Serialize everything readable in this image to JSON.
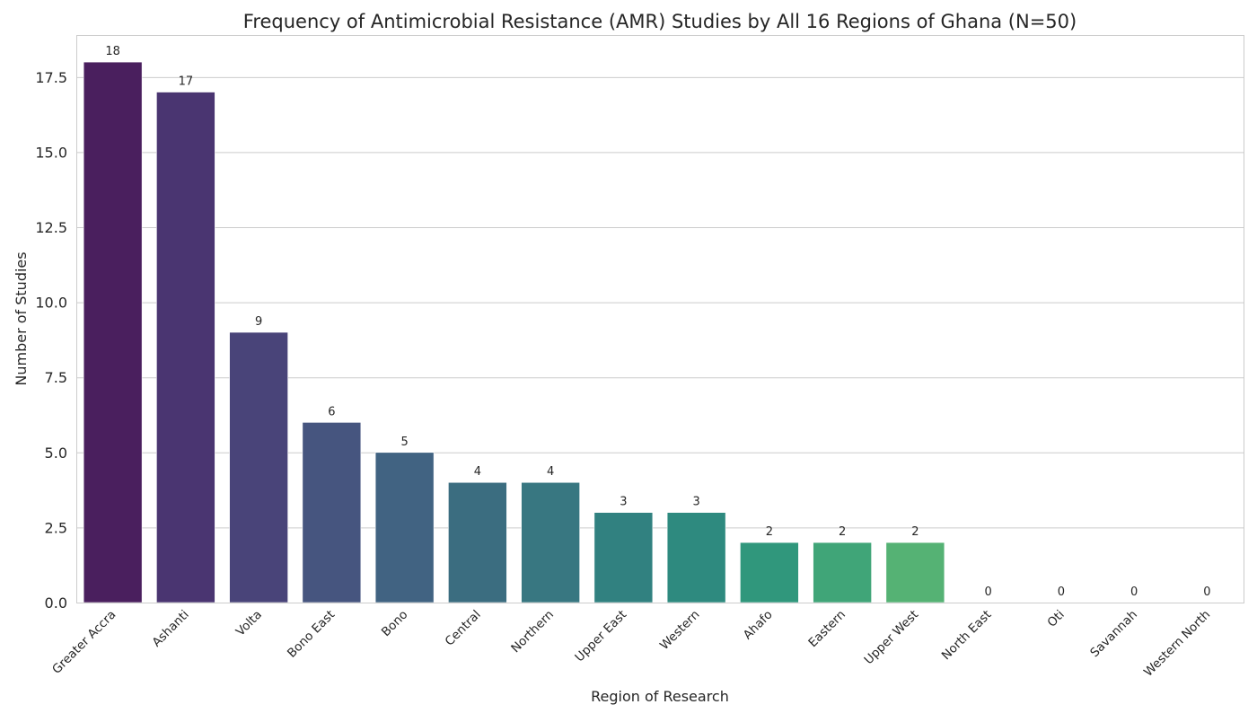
{
  "chart_data": {
    "type": "bar",
    "title": "Frequency of Antimicrobial Resistance (AMR) Studies by All 16 Regions of Ghana (N=50)",
    "xlabel": "Region of Research",
    "ylabel": "Number of Studies",
    "categories": [
      "Greater Accra",
      "Ashanti",
      "Volta",
      "Bono East",
      "Bono",
      "Central",
      "Northern",
      "Upper East",
      "Western",
      "Ahafo",
      "Eastern",
      "Upper West",
      "North East",
      "Oti",
      "Savannah",
      "Western North"
    ],
    "values": [
      18,
      17,
      9,
      6,
      5,
      4,
      4,
      3,
      3,
      2,
      2,
      2,
      0,
      0,
      0,
      0
    ],
    "colors": [
      "#4a1f5e",
      "#4a3571",
      "#494479",
      "#46557f",
      "#416382",
      "#3b6d80",
      "#387781",
      "#318180",
      "#2e8a7f",
      "#30977c",
      "#40a578",
      "#55b274",
      "#6bbf6b",
      "#8ccb5c",
      "#b2d64a",
      "#d8e03a"
    ],
    "ylim": [
      0,
      18.9
    ],
    "yticks": [
      "0.0",
      "2.5",
      "5.0",
      "7.5",
      "10.0",
      "12.5",
      "15.0",
      "17.5"
    ],
    "grid": true,
    "legend": "none"
  }
}
